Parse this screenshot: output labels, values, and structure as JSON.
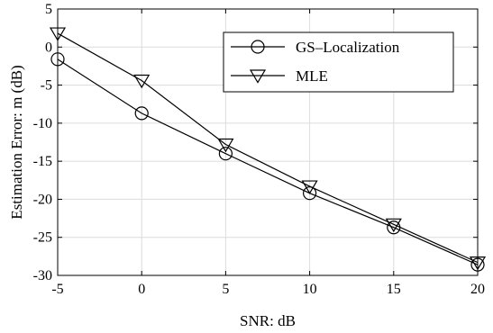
{
  "chart_data": {
    "type": "line",
    "xlabel": "SNR: dB",
    "ylabel": "Estimation Error: m (dB)",
    "xlim": [
      -5,
      20
    ],
    "ylim": [
      -30,
      5
    ],
    "xticks": [
      -5,
      0,
      5,
      10,
      15,
      20
    ],
    "yticks": [
      5,
      0,
      -5,
      -10,
      -15,
      -20,
      -25,
      -30
    ],
    "x": [
      -5,
      0,
      5,
      10,
      15,
      20
    ],
    "grid": true,
    "legend_position": "top-right",
    "series": [
      {
        "name": "GS–Localization",
        "marker": "circle",
        "values": [
          -1.6,
          -8.7,
          -14.0,
          -19.2,
          -23.7,
          -28.6
        ]
      },
      {
        "name": "MLE",
        "marker": "triangle-down",
        "values": [
          1.8,
          -4.4,
          -12.8,
          -18.3,
          -23.3,
          -28.3
        ]
      }
    ]
  }
}
